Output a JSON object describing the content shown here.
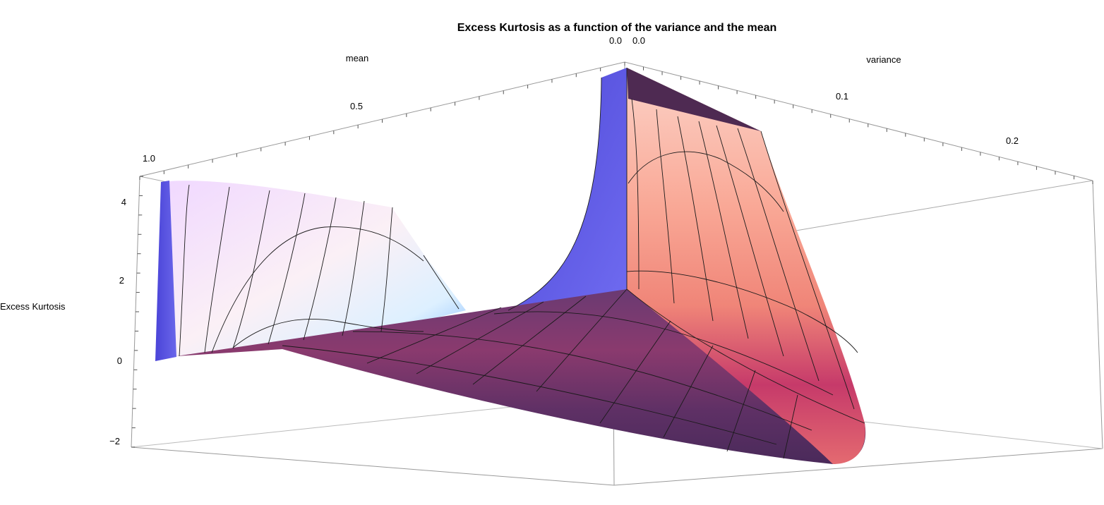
{
  "chart_data": {
    "type": "surface",
    "title": "Excess Kurtosis as a function of the variance and the mean",
    "x_axis": {
      "label": "mean",
      "range": [
        0,
        1
      ],
      "ticks": [
        "0.0",
        "0.5",
        "1.0"
      ]
    },
    "y_axis": {
      "label": "variance",
      "range": [
        0,
        0.25
      ],
      "ticks": [
        "0.0",
        "0.1",
        "0.2"
      ]
    },
    "z_axis": {
      "label": "Excess Kurtosis",
      "range": [
        -2,
        5
      ],
      "ticks": [
        "−2",
        "0",
        "2",
        "4"
      ]
    },
    "surface_clip_z": 5,
    "box": true,
    "mesh": true,
    "colors": {
      "edge_blue": "#5a52e0",
      "low_purple": "#5e2f63",
      "mid_magenta": "#c23a6f",
      "high_salmon": "#f4877a",
      "peak_pink": "#fcd6cf"
    }
  }
}
